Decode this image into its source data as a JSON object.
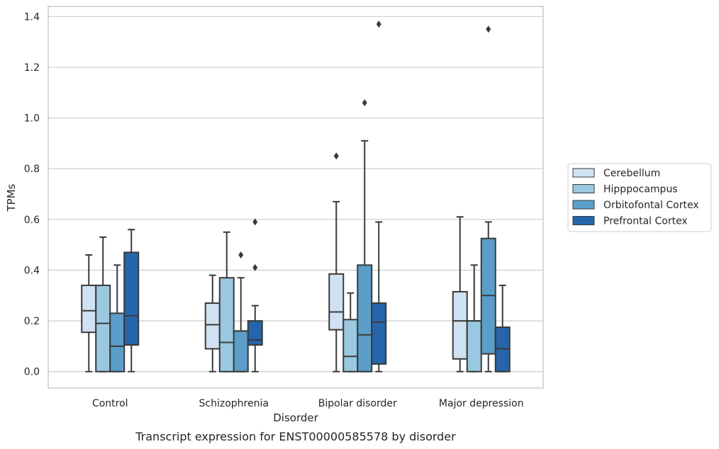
{
  "chart_data": {
    "type": "box",
    "categories": [
      "Control",
      "Schizophrenia",
      "Bipolar disorder",
      "Major depression"
    ],
    "xlabel": "Disorder",
    "ylabel": "TPMs",
    "caption": "Transcript expression for ENST00000585578 by disorder",
    "ylim": [
      -0.065,
      1.44
    ],
    "yticks": [
      "0.0",
      "0.2",
      "0.4",
      "0.6",
      "0.8",
      "1.0",
      "1.2",
      "1.4"
    ],
    "grid": "horizontal",
    "legend_position": "right",
    "series": [
      {
        "name": "Cerebellum",
        "color": "#d0e1f2",
        "boxes": [
          {
            "whislo": 0.0,
            "q1": 0.155,
            "median": 0.24,
            "q3": 0.34,
            "whishi": 0.46,
            "fliers": []
          },
          {
            "whislo": 0.0,
            "q1": 0.09,
            "median": 0.185,
            "q3": 0.27,
            "whishi": 0.38,
            "fliers": []
          },
          {
            "whislo": 0.0,
            "q1": 0.165,
            "median": 0.235,
            "q3": 0.385,
            "whishi": 0.67,
            "fliers": [
              0.85
            ]
          },
          {
            "whislo": 0.0,
            "q1": 0.05,
            "median": 0.2,
            "q3": 0.315,
            "whishi": 0.61,
            "fliers": []
          }
        ]
      },
      {
        "name": "Hipppocampus",
        "color": "#9ac8e0",
        "boxes": [
          {
            "whislo": 0.0,
            "q1": 0.0,
            "median": 0.19,
            "q3": 0.34,
            "whishi": 0.53,
            "fliers": []
          },
          {
            "whislo": 0.0,
            "q1": 0.0,
            "median": 0.115,
            "q3": 0.37,
            "whishi": 0.55,
            "fliers": []
          },
          {
            "whislo": 0.0,
            "q1": 0.0,
            "median": 0.06,
            "q3": 0.205,
            "whishi": 0.31,
            "fliers": []
          },
          {
            "whislo": 0.0,
            "q1": 0.0,
            "median": 0.2,
            "q3": 0.2,
            "whishi": 0.42,
            "fliers": []
          }
        ]
      },
      {
        "name": "Orbitofontal Cortex",
        "color": "#5a9ec9",
        "boxes": [
          {
            "whislo": 0.0,
            "q1": 0.0,
            "median": 0.1,
            "q3": 0.23,
            "whishi": 0.42,
            "fliers": []
          },
          {
            "whislo": 0.0,
            "q1": 0.0,
            "median": 0.16,
            "q3": 0.16,
            "whishi": 0.37,
            "fliers": [
              0.46
            ]
          },
          {
            "whislo": 0.0,
            "q1": 0.0,
            "median": 0.145,
            "q3": 0.42,
            "whishi": 0.91,
            "fliers": [
              1.06
            ]
          },
          {
            "whislo": 0.0,
            "q1": 0.07,
            "median": 0.3,
            "q3": 0.525,
            "whishi": 0.59,
            "fliers": [
              1.35
            ]
          }
        ]
      },
      {
        "name": "Prefrontal Cortex",
        "color": "#2565ab",
        "boxes": [
          {
            "whislo": 0.0,
            "q1": 0.105,
            "median": 0.22,
            "q3": 0.47,
            "whishi": 0.56,
            "fliers": []
          },
          {
            "whislo": 0.0,
            "q1": 0.105,
            "median": 0.125,
            "q3": 0.2,
            "whishi": 0.26,
            "fliers": [
              0.41,
              0.59
            ]
          },
          {
            "whislo": 0.0,
            "q1": 0.03,
            "median": 0.195,
            "q3": 0.27,
            "whishi": 0.59,
            "fliers": [
              1.37
            ]
          },
          {
            "whislo": 0.0,
            "q1": 0.0,
            "median": 0.09,
            "q3": 0.175,
            "whishi": 0.34,
            "fliers": []
          }
        ]
      }
    ]
  }
}
